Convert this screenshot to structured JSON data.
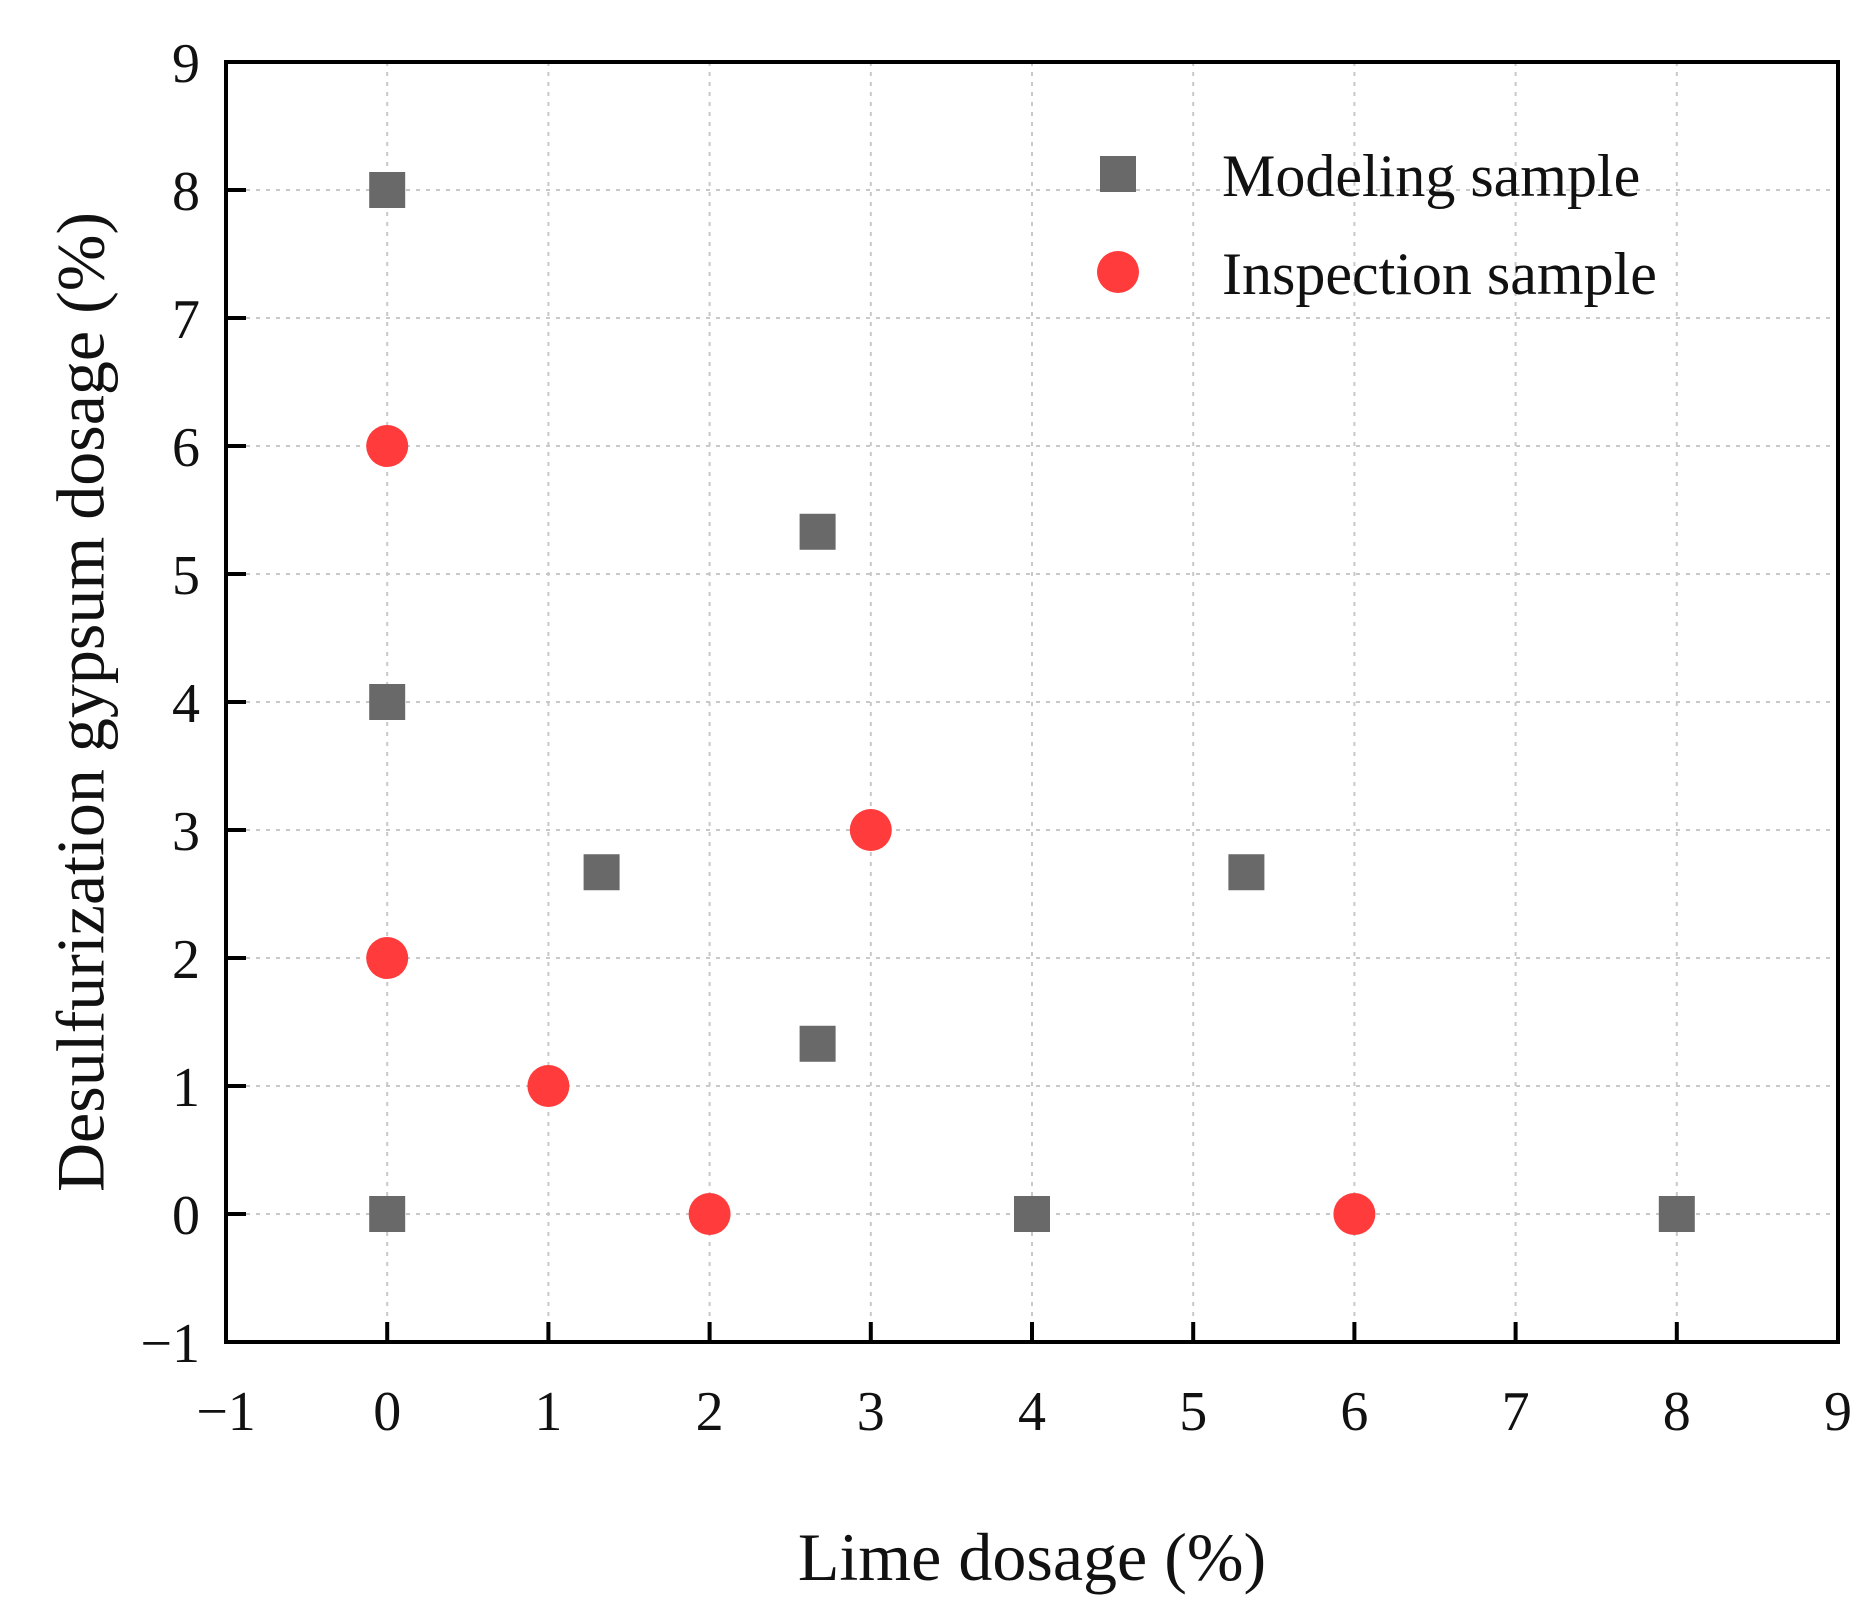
{
  "chart_data": {
    "type": "scatter",
    "title": "",
    "xlabel": "Lime dosage (%)",
    "ylabel": "Desulfurization gypsum dosage (%)",
    "xlim": [
      -1,
      9
    ],
    "ylim": [
      -1,
      9
    ],
    "xticks": [
      "−1",
      "0",
      "1",
      "2",
      "3",
      "4",
      "5",
      "6",
      "7",
      "8",
      "9"
    ],
    "yticks": [
      "−1",
      "0",
      "1",
      "2",
      "3",
      "4",
      "5",
      "6",
      "7",
      "8",
      "9"
    ],
    "grid": true,
    "legend_position": "top-right",
    "series": [
      {
        "name": "Modeling sample",
        "marker": "square",
        "color": "#696969",
        "points": [
          {
            "x": 0,
            "y": 8
          },
          {
            "x": 0,
            "y": 4
          },
          {
            "x": 0,
            "y": 0
          },
          {
            "x": 1.33,
            "y": 2.67
          },
          {
            "x": 2.67,
            "y": 5.33
          },
          {
            "x": 2.67,
            "y": 1.33
          },
          {
            "x": 4,
            "y": 0
          },
          {
            "x": 5.33,
            "y": 2.67
          },
          {
            "x": 8,
            "y": 0
          }
        ]
      },
      {
        "name": "Inspection sample",
        "marker": "circle",
        "color": "#ff3b3b",
        "points": [
          {
            "x": 0,
            "y": 6
          },
          {
            "x": 0,
            "y": 2
          },
          {
            "x": 1,
            "y": 1
          },
          {
            "x": 2,
            "y": 0
          },
          {
            "x": 3,
            "y": 3
          },
          {
            "x": 6,
            "y": 0
          }
        ]
      }
    ]
  }
}
